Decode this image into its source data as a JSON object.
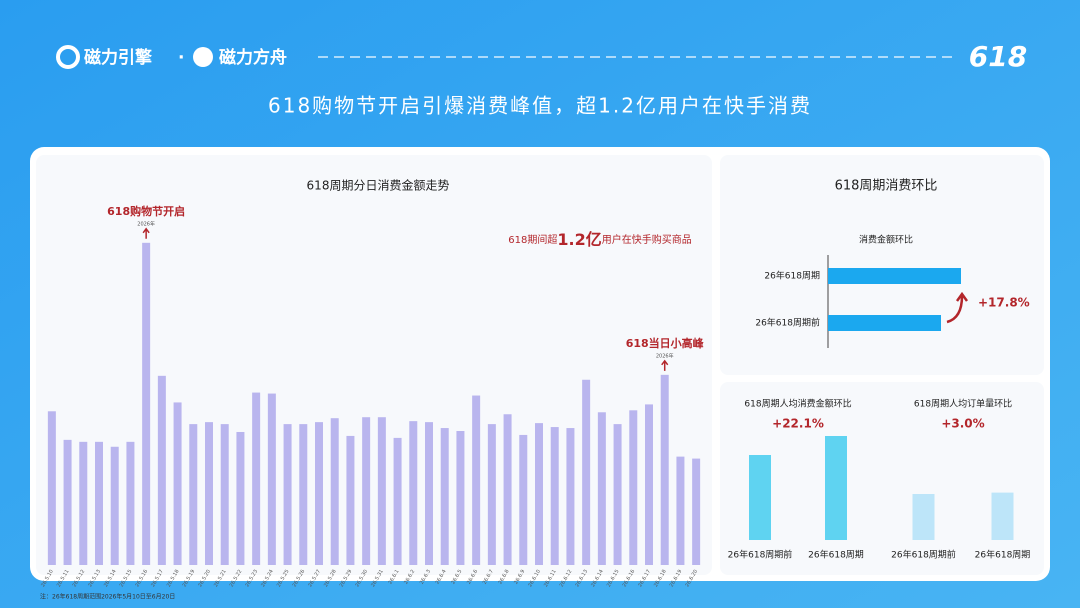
{
  "header": {
    "brand_1": "磁力引擎",
    "separator": "·",
    "brand_2": "磁力方舟",
    "logo": "618",
    "title": "618购物节开启引爆消费峰值，超1.2亿用户在快手消费",
    "section_title": "618周期消费环比"
  },
  "chart_data": [
    {
      "type": "bar",
      "title": "618周期分日消费金额走势",
      "color": "#b9b5ee",
      "categories": [
        "26.5.10",
        "26.5.11",
        "26.5.12",
        "26.5.13",
        "26.5.14",
        "26.5.15",
        "26.5.16",
        "26.5.17",
        "26.5.18",
        "26.5.19",
        "26.5.20",
        "26.5.21",
        "26.5.22",
        "26.5.23",
        "26.5.24",
        "26.5.25",
        "26.5.26",
        "26.5.27",
        "26.5.28",
        "26.5.29",
        "26.5.30",
        "26.5.31",
        "26.6.1",
        "26.6.2",
        "26.6.3",
        "26.6.4",
        "26.6.5",
        "26.6.6",
        "26.6.7",
        "26.6.8",
        "26.6.9",
        "26.6.10",
        "26.6.11",
        "26.6.12",
        "26.6.13",
        "26.6.14",
        "26.6.15",
        "26.6.16",
        "26.6.17",
        "26.6.18",
        "26.6.19",
        "26.6.20"
      ],
      "values": [
        156,
        127,
        125,
        125,
        120,
        125,
        327,
        192,
        165,
        143,
        145,
        143,
        135,
        175,
        174,
        143,
        143,
        145,
        149,
        131,
        150,
        150,
        129,
        146,
        145,
        139,
        136,
        172,
        143,
        153,
        132,
        144,
        140,
        139,
        188,
        155,
        143,
        157,
        163,
        193,
        110,
        108
      ],
      "ylim": [
        0,
        340
      ],
      "annotations": [
        {
          "text": "618购物节开启",
          "sub": "2026年"
        },
        {
          "text": "618当日小高峰",
          "sub": "2026年"
        }
      ],
      "highlight": [
        "618期间超",
        "1.2亿",
        "用户在快手购买商品"
      ]
    },
    {
      "type": "barh",
      "title": "消费金额环比",
      "color": "#1ba8ef",
      "categories": [
        "26年618周期",
        "26年618周期前"
      ],
      "values": [
        133,
        113
      ],
      "xlim": [
        0,
        140
      ],
      "annotation": "+17.8%"
    },
    {
      "type": "bar",
      "title": "618周期人均消费金额环比",
      "color": "#5fd3f1",
      "categories": [
        "26年618周期前",
        "26年618周期"
      ],
      "values": [
        85,
        104
      ],
      "ylim": [
        0,
        120
      ],
      "annotation": "+22.1%"
    },
    {
      "type": "bar",
      "title": "618周期人均订单量环比",
      "color": "#bde5f9",
      "categories": [
        "26年618周期前",
        "26年618周期"
      ],
      "values": [
        46,
        47.4
      ],
      "ylim": [
        0,
        120
      ],
      "annotation": "+3.0%"
    }
  ],
  "footnote": "注：26年618周期范围2026年5月10日至6月20日"
}
